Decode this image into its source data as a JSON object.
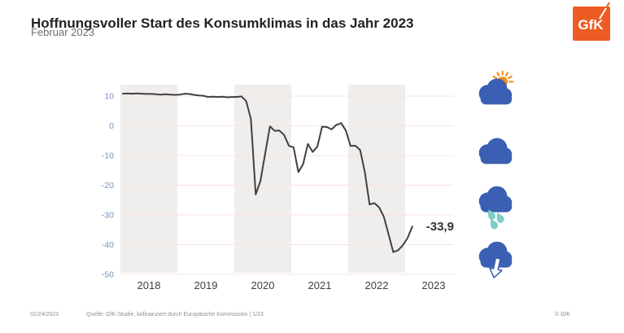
{
  "header": {
    "title": "Hoffnungsvoller Start des Konsumklimas in das Jahr 2023",
    "subtitle": "Februar 2023",
    "logo_text": "GfK"
  },
  "footer": {
    "date": "01/24/2023",
    "source": "Quelle: GfK-Studie, kofinanziert durch Europäische Kommission | 1/23",
    "copyright": "© GfK"
  },
  "mood_icons": [
    {
      "name": "partly-sunny-icon"
    },
    {
      "name": "cloudy-icon"
    },
    {
      "name": "rainy-icon"
    },
    {
      "name": "cloud-arrow-down-icon"
    }
  ],
  "colors": {
    "title": "#222222",
    "subtitle": "#6f6f6f",
    "footer": "#8f8f8f",
    "logo": "#ee5b23",
    "cloud": "#3b5fb2",
    "sun": "#f08c1b",
    "drop": "#7ccfc9",
    "line": "#404040",
    "band": "#f0eeed",
    "grid": "#f8e4e0",
    "ytick": "#7792bb",
    "xtick": "#3f3f3f",
    "label": "#333333"
  },
  "chart_data": {
    "type": "line",
    "title": "Hoffnungsvoller Start des Konsumklimas in das Jahr 2023",
    "frequency": "monthly",
    "x_start": "2018-01",
    "x_end": "2023-02",
    "categories_years": [
      "2018",
      "2019",
      "2020",
      "2021",
      "2022",
      "2023"
    ],
    "values": [
      10.8,
      10.9,
      10.8,
      10.9,
      10.8,
      10.7,
      10.7,
      10.6,
      10.5,
      10.6,
      10.5,
      10.4,
      10.5,
      10.8,
      10.7,
      10.4,
      10.2,
      10.1,
      9.7,
      9.8,
      9.7,
      9.8,
      9.6,
      9.7,
      9.7,
      9.9,
      8.3,
      2.3,
      -23.1,
      -18.6,
      -9.4,
      -0.2,
      -1.7,
      -1.6,
      -3.1,
      -6.7,
      -7.3,
      -15.6,
      -12.9,
      -6.1,
      -8.8,
      -7.0,
      -0.3,
      -0.4,
      -1.2,
      0.3,
      0.9,
      -1.6,
      -6.8,
      -6.7,
      -8.1,
      -15.5,
      -26.5,
      -26.0,
      -27.4,
      -30.6,
      -36.5,
      -42.5,
      -41.9,
      -40.2,
      -37.8,
      -33.9
    ],
    "yticks": [
      10,
      0,
      -10,
      -20,
      -30,
      -40,
      -50
    ],
    "ylim": [
      -50,
      12
    ],
    "end_label": "-33,9",
    "grid": "horizontal-only",
    "band_shading_years": [
      "2018",
      "2020",
      "2022"
    ],
    "legend_position": "none"
  }
}
